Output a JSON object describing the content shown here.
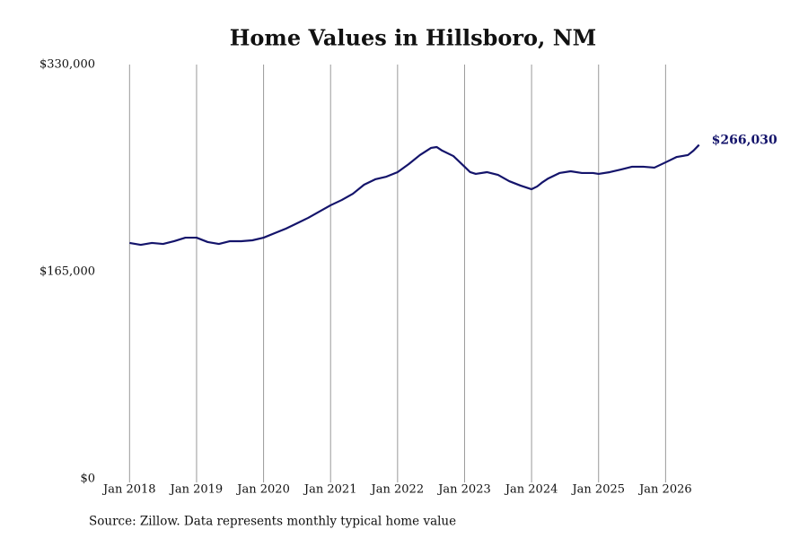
{
  "chart_data": {
    "type": "line",
    "title": "Home Values in Hillsboro, NM",
    "source": "Source: Zillow. Data represents monthly typical home value",
    "x": [
      "2018-01",
      "2018-03",
      "2018-05",
      "2018-07",
      "2018-09",
      "2018-11",
      "2019-01",
      "2019-03",
      "2019-05",
      "2019-07",
      "2019-09",
      "2019-11",
      "2020-01",
      "2020-03",
      "2020-05",
      "2020-07",
      "2020-09",
      "2020-11",
      "2021-01",
      "2021-03",
      "2021-05",
      "2021-07",
      "2021-09",
      "2021-11",
      "2022-01",
      "2022-03",
      "2022-05",
      "2022-07",
      "2022-08",
      "2022-09",
      "2022-11",
      "2023-01",
      "2023-02",
      "2023-03",
      "2023-05",
      "2023-07",
      "2023-09",
      "2023-11",
      "2024-01",
      "2024-02",
      "2024-03",
      "2024-04",
      "2024-06",
      "2024-08",
      "2024-10",
      "2024-12",
      "2025-01",
      "2025-03",
      "2025-05",
      "2025-07",
      "2025-09",
      "2025-11",
      "2026-01",
      "2026-03",
      "2026-05",
      "2026-06",
      "2026-07"
    ],
    "series": [
      {
        "name": "Typical home value",
        "color": "#14146b",
        "values": [
          187900,
          186400,
          187900,
          187100,
          189300,
          192100,
          192100,
          188600,
          187100,
          189300,
          189300,
          190000,
          192100,
          195700,
          199300,
          203600,
          207900,
          212900,
          217900,
          222100,
          227100,
          234300,
          238600,
          240700,
          244300,
          250700,
          257900,
          263600,
          264300,
          261400,
          257100,
          248600,
          244300,
          242900,
          244300,
          242100,
          237100,
          233600,
          230700,
          232900,
          236400,
          239300,
          243600,
          245000,
          243600,
          243600,
          242900,
          244300,
          246400,
          248600,
          248600,
          247900,
          252100,
          256400,
          257900,
          261400,
          266030
        ]
      }
    ],
    "end_label": "$266,030",
    "xlim": [
      "2017-07",
      "2027-01"
    ],
    "xticks": [
      {
        "value": "2018-01",
        "label": "Jan 2018"
      },
      {
        "value": "2019-01",
        "label": "Jan 2019"
      },
      {
        "value": "2020-01",
        "label": "Jan 2020"
      },
      {
        "value": "2021-01",
        "label": "Jan 2021"
      },
      {
        "value": "2022-01",
        "label": "Jan 2022"
      },
      {
        "value": "2023-01",
        "label": "Jan 2023"
      },
      {
        "value": "2024-01",
        "label": "Jan 2024"
      },
      {
        "value": "2025-01",
        "label": "Jan 2025"
      },
      {
        "value": "2026-01",
        "label": "Jan 2026"
      }
    ],
    "ylim": [
      0,
      330000
    ],
    "yticks": [
      {
        "value": 0,
        "label": "$0"
      },
      {
        "value": 165000,
        "label": "$165,000"
      },
      {
        "value": 330000,
        "label": "$330,000"
      }
    ],
    "grid": "x"
  }
}
